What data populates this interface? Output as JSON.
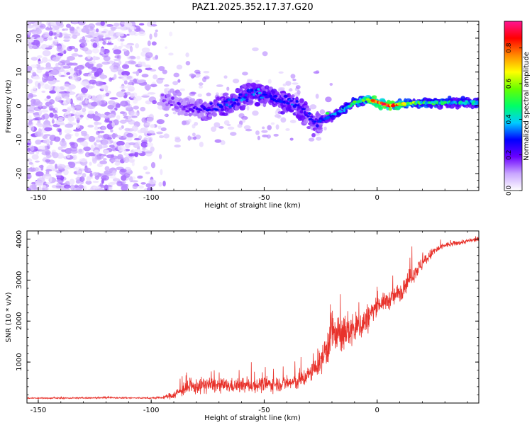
{
  "figure_title": "PAZ1.2025.352.17.37.G20",
  "chart_data": [
    {
      "type": "heatmap",
      "name": "spectrogram",
      "title": "PAZ1.2025.352.17.37.G20",
      "xlabel": "Height of straight line (km)",
      "ylabel": "Frequency (Hz)",
      "xlim": [
        -155,
        45
      ],
      "ylim": [
        -25,
        25
      ],
      "xticks": [
        -150,
        -100,
        -50,
        0
      ],
      "yticks": [
        20,
        10,
        0,
        -10,
        -20
      ],
      "ytick_labels": [
        "20",
        "10",
        "0",
        "-10",
        "-20"
      ],
      "noise_region": {
        "x_range": [
          -155,
          -90
        ],
        "y_range": [
          -25,
          25
        ],
        "amplitude_range": [
          0.02,
          0.15
        ]
      },
      "signal_ridge": {
        "x": [
          -95,
          -85,
          -75,
          -65,
          -55,
          -45,
          -35,
          -28,
          -20,
          -10,
          -5,
          0,
          5,
          10,
          20,
          30,
          40,
          45
        ],
        "freq": [
          2,
          0,
          -1,
          1,
          4,
          2,
          0,
          -5,
          -3,
          1,
          2,
          1,
          0,
          0.5,
          1,
          1,
          1,
          1
        ],
        "amplitude": [
          0.15,
          0.2,
          0.25,
          0.3,
          0.35,
          0.3,
          0.3,
          0.25,
          0.35,
          0.45,
          0.6,
          0.8,
          0.9,
          0.7,
          0.5,
          0.45,
          0.4,
          0.4
        ]
      },
      "colorbar": {
        "label": "Normalized spectral amplitude",
        "range": [
          0.0,
          0.95
        ],
        "ticks": [
          0.0,
          0.2,
          0.4,
          0.6,
          0.8
        ],
        "tick_labels": [
          "0.0",
          "0.2",
          "0.4",
          "0.6",
          "0.8"
        ],
        "colors": [
          "#ffffff",
          "#c9a6ff",
          "#6a00ff",
          "#0000ff",
          "#00ccff",
          "#00ff66",
          "#66ff00",
          "#ffff00",
          "#ff8800",
          "#ff0000",
          "#ff1493"
        ]
      }
    },
    {
      "type": "line",
      "name": "snr",
      "title": "",
      "xlabel": "Height of straight line (km)",
      "ylabel": "SNR (10 * v/v)",
      "xlim": [
        -155,
        45
      ],
      "ylim": [
        0,
        4200
      ],
      "xticks": [
        -150,
        -100,
        -50,
        0
      ],
      "yticks": [
        1000,
        2000,
        3000,
        4000
      ],
      "line_color": "#e8322b",
      "series": [
        {
          "name": "SNR",
          "x": [
            -155,
            -140,
            -120,
            -100,
            -95,
            -90,
            -85,
            -80,
            -75,
            -70,
            -60,
            -50,
            -40,
            -35,
            -30,
            -25,
            -22,
            -20,
            -18,
            -15,
            -10,
            -5,
            0,
            5,
            10,
            15,
            20,
            25,
            30,
            40,
            45
          ],
          "y": [
            120,
            120,
            130,
            120,
            130,
            200,
            350,
            400,
            450,
            420,
            420,
            450,
            480,
            520,
            700,
            1000,
            1400,
            1800,
            1600,
            1700,
            1800,
            2000,
            2400,
            2500,
            2700,
            3100,
            3400,
            3700,
            3850,
            3950,
            4000
          ],
          "fluctuation": [
            25,
            30,
            30,
            30,
            50,
            180,
            300,
            330,
            360,
            300,
            300,
            330,
            320,
            380,
            400,
            500,
            900,
            1200,
            800,
            800,
            700,
            700,
            350,
            400,
            450,
            400,
            300,
            200,
            120,
            100,
            100
          ]
        }
      ]
    }
  ]
}
